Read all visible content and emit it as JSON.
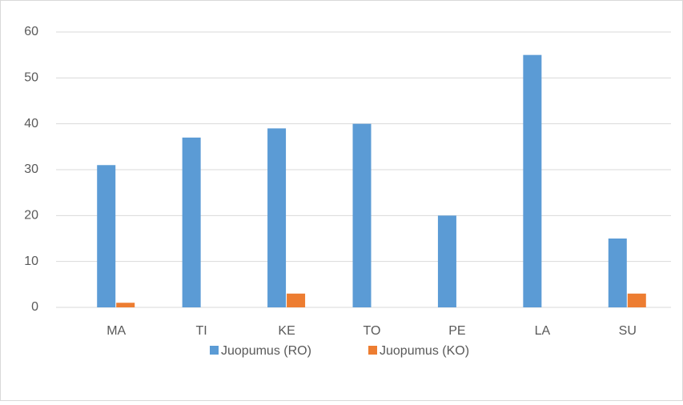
{
  "chart_data": {
    "type": "bar",
    "categories": [
      "MA",
      "TI",
      "KE",
      "TO",
      "PE",
      "LA",
      "SU"
    ],
    "series": [
      {
        "name": "Juopumus (RO)",
        "color": "#5b9bd5",
        "values": [
          31,
          37,
          39,
          40,
          20,
          55,
          15
        ]
      },
      {
        "name": "Juopumus (KO)",
        "color": "#ed7d31",
        "values": [
          1,
          0,
          3,
          0,
          0,
          0,
          3
        ]
      }
    ],
    "ylim": [
      0,
      60
    ],
    "yticks": [
      0,
      10,
      20,
      30,
      40,
      50,
      60
    ],
    "grid": true,
    "legend": "bottom"
  }
}
